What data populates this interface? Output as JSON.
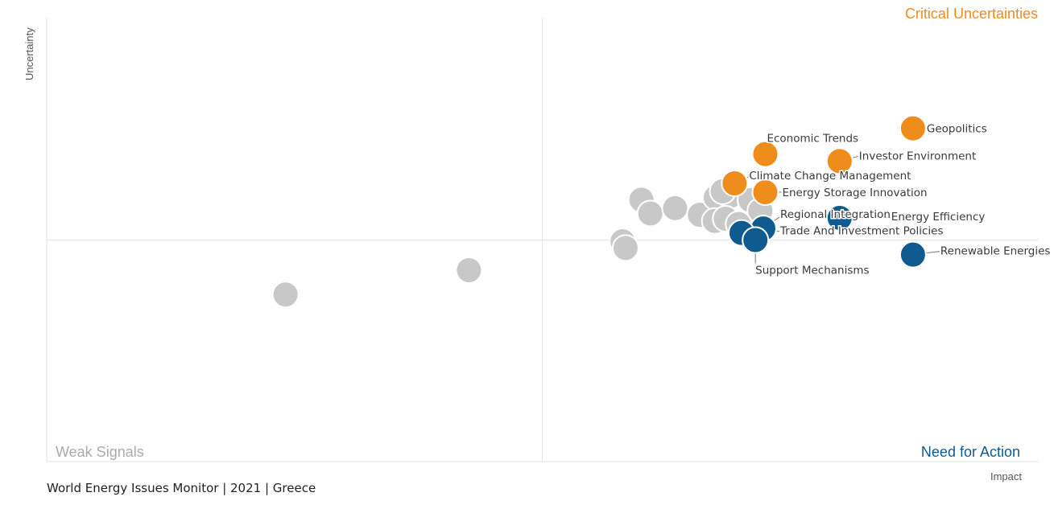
{
  "quadrants": {
    "top_right": "Critical Uncertainties",
    "bottom_left": "Weak Signals",
    "bottom_right": "Need for Action"
  },
  "footer": "World Energy Issues Monitor | 2021 | Greece",
  "colors": {
    "uncertainty": "#EE8D1C",
    "action": "#0F5A8F",
    "other": "#C8C8C8",
    "weak_text": "#AAAAAA",
    "grid": "#E3E3E3"
  },
  "chart_data": {
    "type": "scatter",
    "xlabel": "Impact",
    "ylabel": "Uncertainty",
    "xlim": [
      0,
      1
    ],
    "ylim": [
      0,
      1
    ],
    "midlines": {
      "x": 0.5,
      "y": 0.5
    },
    "grid": false,
    "series": [
      {
        "group": "critical-uncertainties",
        "points": [
          {
            "label": "Geopolitics",
            "x": 0.874,
            "y": 0.752
          },
          {
            "label": "Investor Environment",
            "x": 0.8,
            "y": 0.678
          },
          {
            "label": "Economic Trends",
            "x": 0.725,
            "y": 0.694
          },
          {
            "label": "Climate Change Management",
            "x": 0.694,
            "y": 0.628
          },
          {
            "label": "Energy Storage Innovation",
            "x": 0.725,
            "y": 0.608
          }
        ]
      },
      {
        "group": "need-for-action",
        "points": [
          {
            "label": "Renewable Energies",
            "x": 0.874,
            "y": 0.467
          },
          {
            "label": "Energy Efficiency",
            "x": 0.8,
            "y": 0.55
          },
          {
            "label": "Regional Integration",
            "x": 0.723,
            "y": 0.526
          },
          {
            "label": "Trade And Investment Policies",
            "x": 0.701,
            "y": 0.516
          },
          {
            "label": "Support Mechanisms",
            "x": 0.715,
            "y": 0.5
          }
        ]
      },
      {
        "group": "other",
        "points": [
          {
            "x": 0.241,
            "y": 0.377
          },
          {
            "x": 0.426,
            "y": 0.432
          },
          {
            "x": 0.581,
            "y": 0.497
          },
          {
            "x": 0.584,
            "y": 0.482
          },
          {
            "x": 0.6,
            "y": 0.591
          },
          {
            "x": 0.609,
            "y": 0.56
          },
          {
            "x": 0.634,
            "y": 0.572
          },
          {
            "x": 0.659,
            "y": 0.557
          },
          {
            "x": 0.675,
            "y": 0.596
          },
          {
            "x": 0.69,
            "y": 0.6
          },
          {
            "x": 0.71,
            "y": 0.59
          },
          {
            "x": 0.674,
            "y": 0.543
          },
          {
            "x": 0.685,
            "y": 0.548
          },
          {
            "x": 0.72,
            "y": 0.566
          },
          {
            "x": 0.698,
            "y": 0.536
          },
          {
            "x": 0.682,
            "y": 0.61
          }
        ]
      }
    ]
  }
}
